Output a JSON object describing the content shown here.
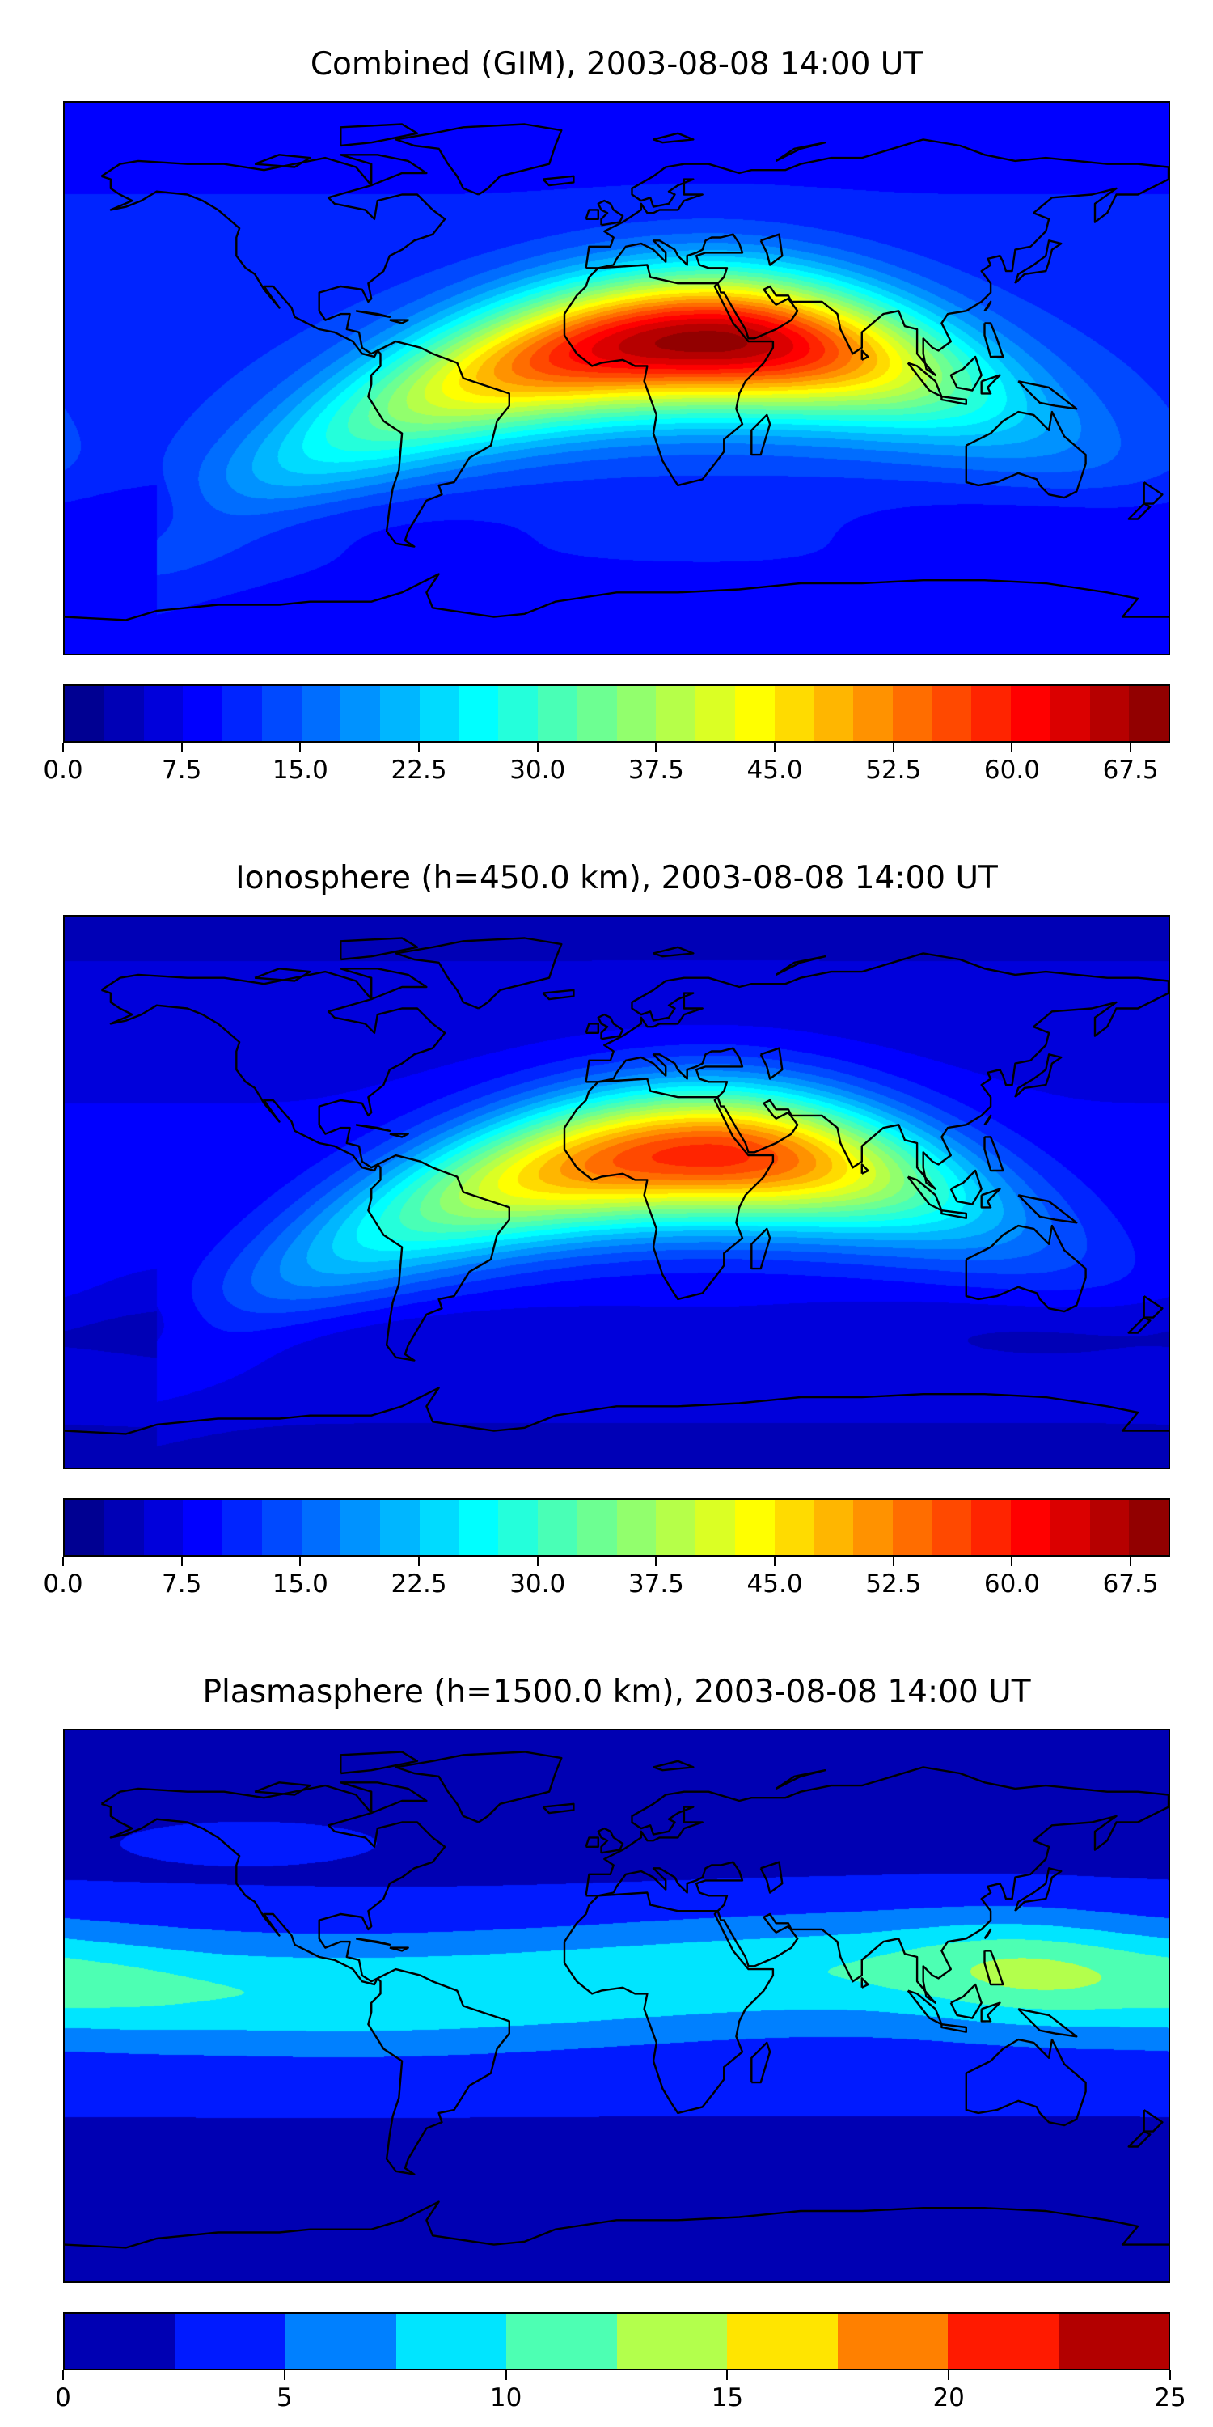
{
  "chart_data": [
    {
      "type": "heatmap",
      "title": "Combined (GIM), 2003-08-08 14:00 UT",
      "projection": "plate-carree (global, lon -180..180, lat -90..90)",
      "colormap": "jet",
      "levels": {
        "min": 0,
        "max": 70,
        "step": 2.5
      },
      "colorbar_ticks": [
        "0.0",
        "7.5",
        "15.0",
        "22.5",
        "30.0",
        "37.5",
        "45.0",
        "52.5",
        "60.0",
        "67.5"
      ],
      "colorbar_tick_values": [
        0,
        7.5,
        15,
        22.5,
        30,
        37.5,
        45,
        52.5,
        60,
        67.5
      ],
      "field": {
        "peak_value": 65,
        "peak_lon": 45,
        "peak_lat": 15,
        "background": 8,
        "amplitude": 57
      }
    },
    {
      "type": "heatmap",
      "title": "Ionosphere  (h=450.0 km), 2003-08-08 14:00 UT",
      "projection": "plate-carree (global, lon -180..180, lat -90..90)",
      "colormap": "jet",
      "levels": {
        "min": 0,
        "max": 70,
        "step": 2.5
      },
      "colorbar_ticks": [
        "0.0",
        "7.5",
        "15.0",
        "22.5",
        "30.0",
        "37.5",
        "45.0",
        "52.5",
        "60.0",
        "67.5"
      ],
      "colorbar_tick_values": [
        0,
        7.5,
        15,
        22.5,
        30,
        37.5,
        45,
        52.5,
        60,
        67.5
      ],
      "field": {
        "peak_value": 55,
        "peak_lon": 42,
        "peak_lat": 14,
        "background": 4,
        "amplitude": 51
      }
    },
    {
      "type": "heatmap",
      "title": "Plasmasphere (h=1500.0 km), 2003-08-08 14:00 UT",
      "projection": "plate-carree (global, lon -180..180, lat -90..90)",
      "colormap": "jet",
      "levels": {
        "min": 0,
        "max": 25,
        "step": 2.5
      },
      "colorbar_ticks": [
        "0",
        "5",
        "10",
        "15",
        "20",
        "25"
      ],
      "colorbar_tick_values": [
        0,
        5,
        10,
        15,
        20,
        25
      ],
      "field": {
        "peak_value": 14,
        "peak_lon": 135,
        "peak_lat": 12,
        "equatorial_band": 9.5,
        "polar": 1
      }
    }
  ]
}
